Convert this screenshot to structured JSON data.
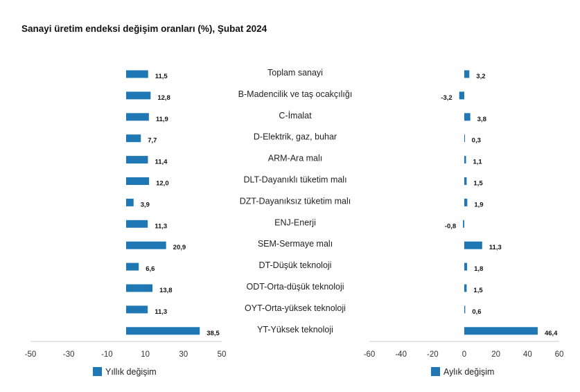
{
  "title": "Sanayi üretim endeksi değişim oranları (%), Şubat 2024",
  "colors": {
    "bar": "#1f77b4",
    "axis": "#cccccc",
    "text": "#111111"
  },
  "chart_data": {
    "type": "bar",
    "orientation": "horizontal",
    "title": "Sanayi üretim endeksi değişim oranları (%), Şubat 2024",
    "categories": [
      "Toplam sanayi",
      "B-Madencilik ve taş ocakçılığı",
      "C-İmalat",
      "D-Elektrik, gaz, buhar",
      "ARM-Ara malı",
      "DLT-Dayanıklı tüketim malı",
      "DZT-Dayanıksız tüketim malı",
      "ENJ-Enerji",
      "SEM-Sermaye malı",
      "DT-Düşük teknoloji",
      "ODT-Orta-düşük teknoloji",
      "OYT-Orta-yüksek teknoloji",
      "YT-Yüksek teknoloji"
    ],
    "series": [
      {
        "name": "Yıllık değişim",
        "values": [
          11.5,
          12.8,
          11.9,
          7.7,
          11.4,
          12.0,
          3.9,
          11.3,
          20.9,
          6.6,
          13.8,
          11.3,
          38.5
        ],
        "labels": [
          "11,5",
          "12,8",
          "11,9",
          "7,7",
          "11,4",
          "12,0",
          "3,9",
          "11,3",
          "20,9",
          "6,6",
          "13,8",
          "11,3",
          "38,5"
        ],
        "xlim": [
          -50,
          50
        ],
        "ticks": [
          "-50",
          "-30",
          "-10",
          "10",
          "30",
          "50"
        ],
        "tick_values": [
          -50,
          -30,
          -10,
          10,
          30,
          50
        ]
      },
      {
        "name": "Aylık değişim",
        "values": [
          3.2,
          -3.2,
          3.8,
          0.3,
          1.1,
          1.5,
          1.9,
          -0.8,
          11.3,
          1.8,
          1.5,
          0.6,
          46.4
        ],
        "labels": [
          "3,2",
          "-3,2",
          "3,8",
          "0,3",
          "1,1",
          "1,5",
          "1,9",
          "-0,8",
          "11,3",
          "1,8",
          "1,5",
          "0,6",
          "46,4"
        ],
        "xlim": [
          -60,
          60
        ],
        "ticks": [
          "-60",
          "-40",
          "-20",
          "0",
          "20",
          "40",
          "60"
        ],
        "tick_values": [
          -60,
          -40,
          -20,
          0,
          20,
          40,
          60
        ]
      }
    ],
    "legend_position": "bottom-left",
    "grid": false
  }
}
